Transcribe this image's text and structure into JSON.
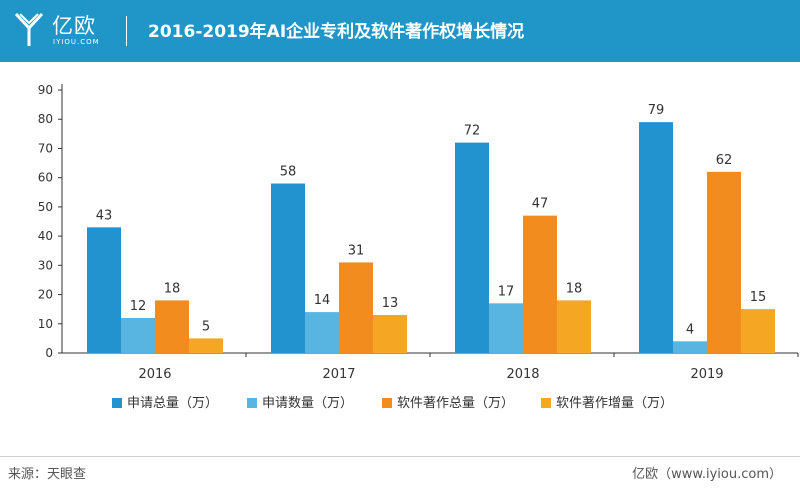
{
  "header": {
    "logo_cn": "亿欧",
    "logo_en": "IYIOU.COM",
    "title": "2016-2019年AI企业专利及软件著作权增长情况",
    "brand_color": "#1f95c8"
  },
  "chart_data": {
    "type": "bar",
    "categories": [
      "2016",
      "2017",
      "2018",
      "2019"
    ],
    "series": [
      {
        "name": "申请总量（万）",
        "color": "#2293cf",
        "values": [
          43,
          58,
          72,
          79
        ]
      },
      {
        "name": "申请数量（万）",
        "color": "#58b5e1",
        "values": [
          12,
          14,
          17,
          4
        ]
      },
      {
        "name": "软件著作总量（万）",
        "color": "#f28c1e",
        "values": [
          18,
          31,
          47,
          62
        ]
      },
      {
        "name": "软件著作增量（万）",
        "color": "#f5a623",
        "values": [
          5,
          13,
          18,
          15
        ]
      }
    ],
    "y_ticks": [
      "0",
      "10",
      "20",
      "30",
      "40",
      "50",
      "60",
      "70",
      "80",
      "90"
    ],
    "ylim": [
      0,
      90
    ],
    "grid": false,
    "legend_position": "bottom"
  },
  "footer": {
    "source": "来源：天眼查",
    "credit": "亿欧（www.iyiou.com）"
  }
}
